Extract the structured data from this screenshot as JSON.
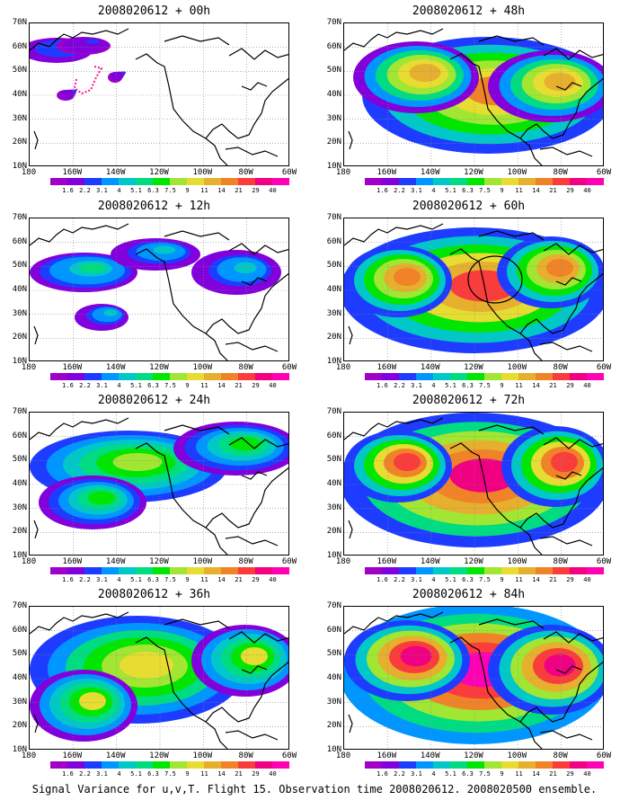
{
  "panels": [
    {
      "title": "2008020612 + 00h",
      "intensity": 0.12
    },
    {
      "title": "2008020612 + 48h",
      "intensity": 0.7
    },
    {
      "title": "2008020612 + 12h",
      "intensity": 0.3
    },
    {
      "title": "2008020612 + 60h",
      "intensity": 0.78
    },
    {
      "title": "2008020612 + 24h",
      "intensity": 0.45
    },
    {
      "title": "2008020612 + 72h",
      "intensity": 0.88
    },
    {
      "title": "2008020612 + 36h",
      "intensity": 0.58
    },
    {
      "title": "2008020612 + 84h",
      "intensity": 0.95
    }
  ],
  "lat_labels": [
    "70N",
    "60N",
    "50N",
    "40N",
    "30N",
    "20N",
    "10N"
  ],
  "lon_labels": [
    "180",
    "160W",
    "140W",
    "120W",
    "100W",
    "80W",
    "60W"
  ],
  "colorbar": {
    "labels": [
      "1.6",
      "2.2",
      "3.1",
      "4",
      "5.1",
      "6.3",
      "7.5",
      "9",
      "11",
      "14",
      "21",
      "29",
      "40"
    ],
    "colors": [
      "#a000c8",
      "#8200dc",
      "#1e3cff",
      "#0096ff",
      "#00c8c8",
      "#00dc82",
      "#00e600",
      "#a0e632",
      "#e6dc32",
      "#e6af2d",
      "#f08228",
      "#fa3c3c",
      "#f00082",
      "#ff00b4"
    ]
  },
  "caption": "Signal Variance for u,v,T. Flight 15. Observation time 2008020612. 2008020500 ensemble."
}
